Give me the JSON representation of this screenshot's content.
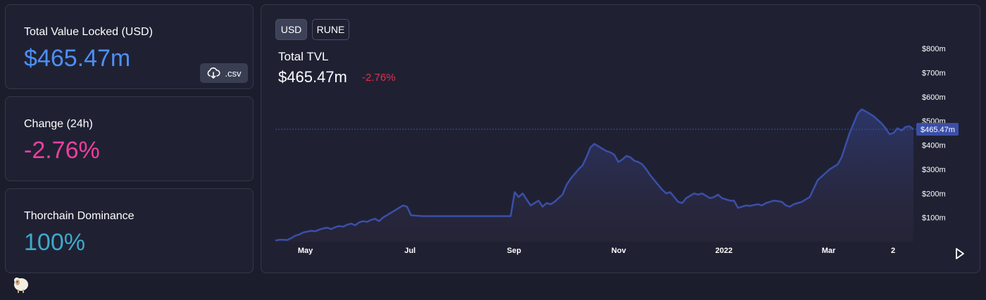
{
  "stats": {
    "tvl_label": "Total Value Locked (USD)",
    "tvl_value": "$465.47m",
    "csv_label": ".csv",
    "change_label": "Change (24h)",
    "change_value": "-2.76%",
    "dominance_label": "Thorchain Dominance",
    "dominance_value": "100%"
  },
  "chart_header": {
    "toggle_usd": "USD",
    "toggle_rune": "RUNE",
    "title": "Total TVL",
    "value": "$465.47m",
    "change": "-2.76%"
  },
  "colors": {
    "tvl_value": "#4d8ff7",
    "change_value": "#ee3f9e",
    "dominance_value": "#3fa9c9",
    "line": "#3b4fa8",
    "negative": "#e0314b"
  },
  "chart_data": {
    "type": "area",
    "title": "Total TVL",
    "x_tick_labels": [
      "May",
      "Jul",
      "Sep",
      "Nov",
      "2022",
      "Mar",
      "2"
    ],
    "y_tick_labels": [
      "$800m",
      "$700m",
      "$600m",
      "$500m",
      "$400m",
      "$300m",
      "$200m",
      "$100m"
    ],
    "ylim": [
      0,
      800
    ],
    "current_value_label": "$465.47m",
    "current_value": 465.47,
    "series": [
      {
        "values": [
          5,
          8,
          8,
          7,
          15,
          25,
          30,
          38,
          42,
          45,
          43,
          50,
          55,
          58,
          52,
          60,
          65,
          62,
          70,
          75,
          68,
          80,
          85,
          82,
          90,
          95,
          85,
          100,
          110,
          120,
          130,
          140,
          150,
          145,
          110,
          108,
          107,
          106,
          106,
          106,
          106,
          106,
          106,
          106,
          106,
          106,
          106,
          106,
          106,
          106,
          106,
          106,
          106,
          106,
          106,
          106,
          106,
          106,
          106,
          106,
          205,
          185,
          200,
          175,
          150,
          160,
          170,
          145,
          160,
          155,
          165,
          180,
          195,
          235,
          260,
          280,
          300,
          315,
          350,
          390,
          405,
          395,
          385,
          375,
          370,
          360,
          330,
          340,
          355,
          350,
          335,
          330,
          320,
          300,
          275,
          255,
          235,
          215,
          200,
          205,
          185,
          165,
          160,
          180,
          190,
          200,
          195,
          200,
          190,
          180,
          185,
          195,
          180,
          175,
          170,
          170,
          140,
          145,
          150,
          148,
          152,
          155,
          150,
          160,
          165,
          170,
          168,
          165,
          150,
          145,
          155,
          160,
          165,
          175,
          185,
          220,
          255,
          270,
          285,
          300,
          310,
          320,
          350,
          400,
          450,
          490,
          530,
          548,
          540,
          530,
          520,
          505,
          490,
          470,
          445,
          450,
          470,
          460,
          475,
          478,
          465.47
        ]
      }
    ]
  }
}
